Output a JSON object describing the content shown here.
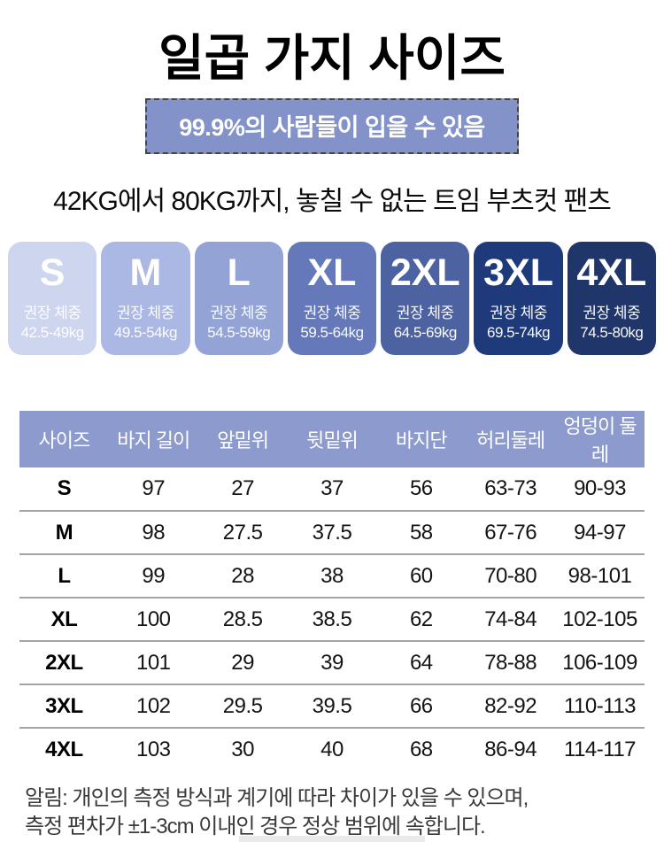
{
  "page": {
    "title": "일곱 가지 사이즈",
    "badge": "99.9%의 사람들이 입을 수 있음",
    "subtitle": "42KG에서 80KG까지, 놓칠 수 없는 트임 부츠컷 팬츠",
    "note_line1": "알림: 개인의 측정 방식과 계기에 따라 차이가 있을 수 있으며,",
    "note_line2": "측정 편차가 ±1-3cm 이내인 경우 정상 범위에 속합니다."
  },
  "colors": {
    "badge_bg": "#8392c8",
    "badge_border": "#454545",
    "table_header_bg": "#8c9ace",
    "row_divider": "#a3a3a3"
  },
  "sizes": {
    "items": [
      {
        "letter": "S",
        "label": "권장 체중",
        "range": "42.5-49kg",
        "color": "#ced5ef"
      },
      {
        "letter": "M",
        "label": "권장 체중",
        "range": "49.5-54kg",
        "color": "#abb8e3"
      },
      {
        "letter": "L",
        "label": "권장 체중",
        "range": "54.5-59kg",
        "color": "#93a3d6"
      },
      {
        "letter": "XL",
        "label": "권장 체중",
        "range": "59.5-64kg",
        "color": "#6579ba"
      },
      {
        "letter": "2XL",
        "label": "권장 체중",
        "range": "64.5-69kg",
        "color": "#4d62a0"
      },
      {
        "letter": "3XL",
        "label": "권장 체중",
        "range": "69.5-74kg",
        "color": "#1e3a7a"
      },
      {
        "letter": "4XL",
        "label": "권장 체중",
        "range": "74.5-80kg",
        "color": "#20356a"
      }
    ]
  },
  "table": {
    "headers": [
      "사이즈",
      "바지 길이",
      "앞밑위",
      "뒷밑위",
      "바지단",
      "허리둘레",
      "엉덩이 둘레"
    ],
    "rows": [
      [
        "S",
        "97",
        "27",
        "37",
        "56",
        "63-73",
        "90-93"
      ],
      [
        "M",
        "98",
        "27.5",
        "37.5",
        "58",
        "67-76",
        "94-97"
      ],
      [
        "L",
        "99",
        "28",
        "38",
        "60",
        "70-80",
        "98-101"
      ],
      [
        "XL",
        "100",
        "28.5",
        "38.5",
        "62",
        "74-84",
        "102-105"
      ],
      [
        "2XL",
        "101",
        "29",
        "39",
        "64",
        "78-88",
        "106-109"
      ],
      [
        "3XL",
        "102",
        "29.5",
        "39.5",
        "66",
        "82-92",
        "110-113"
      ],
      [
        "4XL",
        "103",
        "30",
        "40",
        "68",
        "86-94",
        "114-117"
      ]
    ]
  }
}
